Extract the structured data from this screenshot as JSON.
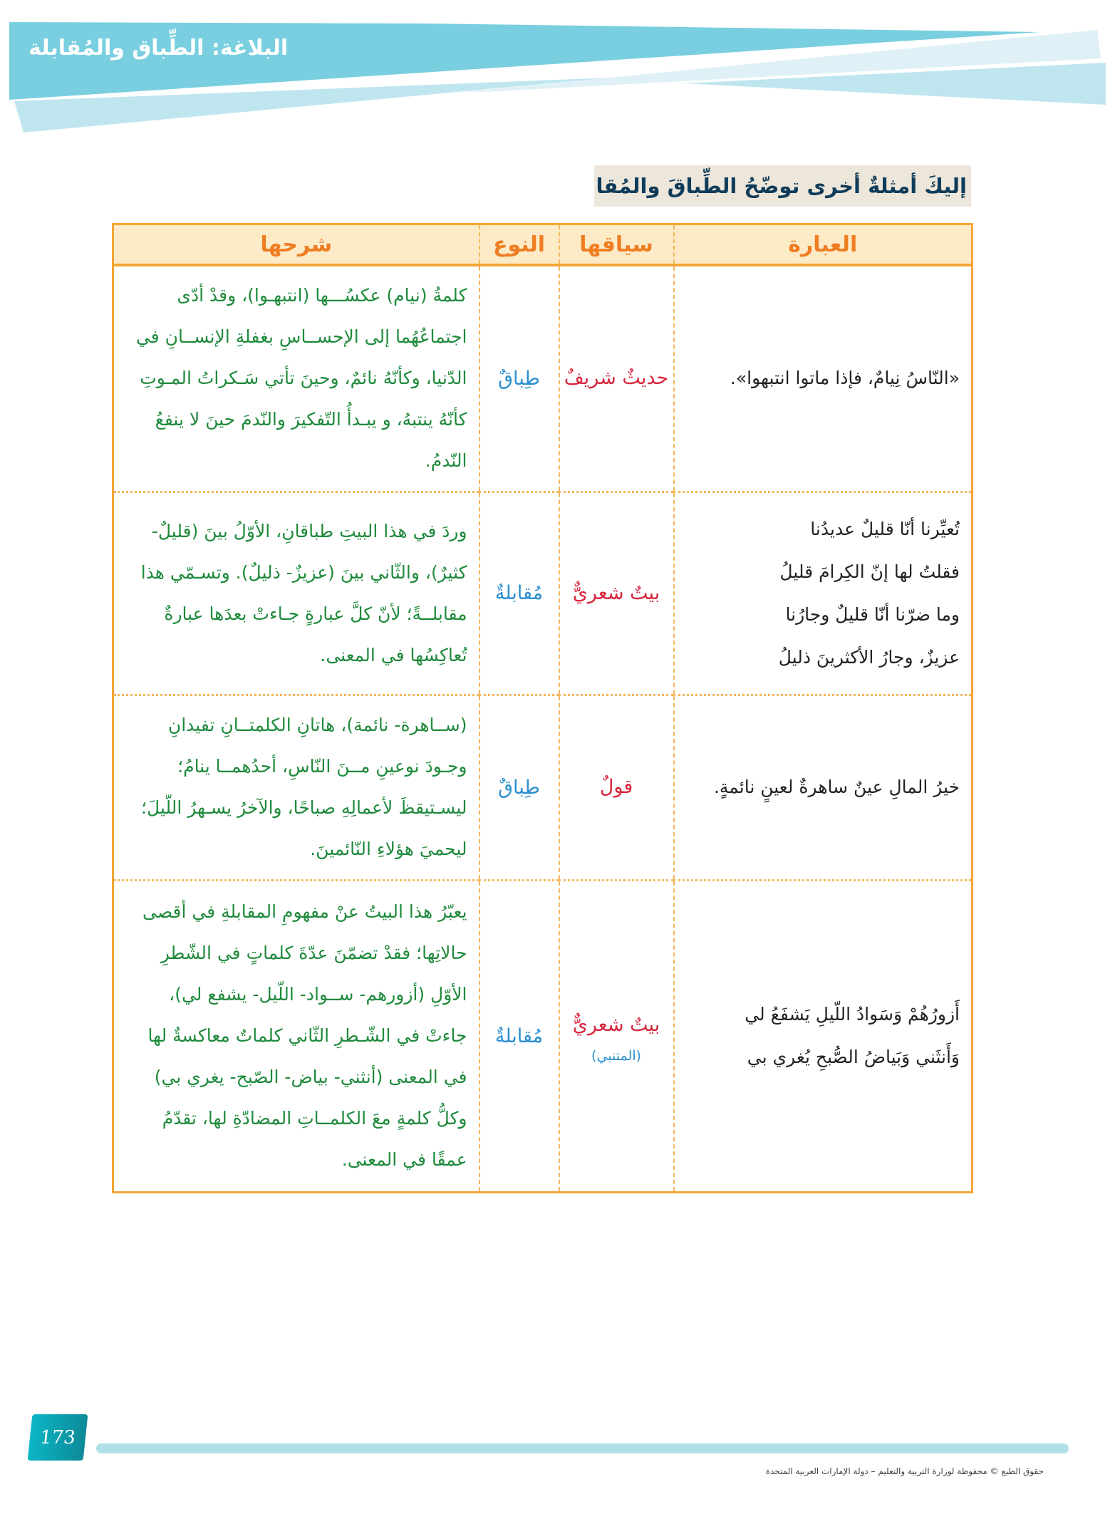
{
  "header": {
    "chapter_title": "البلاغة: الطِّباق والمُقابلة",
    "colors": {
      "band_dark": "#79cfe0",
      "band_light": "#bfe6ef"
    }
  },
  "section": {
    "heading": "إليكَ أمثلةٌ أخرى توضّحُ الطِّباقَ والمُقابلة."
  },
  "table": {
    "headers": [
      "العبارة",
      "سياقها",
      "النوع",
      "شرحها"
    ],
    "rows": [
      {
        "expression": "«النّاسُ نِيامٌ، فإذا ماتوا انتبهوا».",
        "context": "حديثٌ شريفٌ",
        "poet": "",
        "type": "طِباقٌ",
        "explanation": "كلمةُ (نيام) عكسُـــها (انتبهـوا)، وقدْ أدّى اجتماعُهُما إلى الإحســاسِ بغفلةِ الإنســانِ في الدّنيا، وكأنّهُ نائمٌ، وحينَ تأتي سَـكراتُ المـوتِ كأنّهُ ينتبهُ، و يبـدأُ التّفكيرَ والنّدمَ حينَ لا ينفعُ النّدمُ."
      },
      {
        "expression": "تُعيِّرنا أنّا قليلٌ عديدُنا\nفقلتُ لها إنّ الكِرامَ قليلُ\nوما ضرّنا أنّا قليلٌ وجارُنا\nعزيزٌ، وجارُ الأكثرينَ ذليلُ",
        "context": "بيتٌ شعريٌّ",
        "poet": "",
        "type": "مُقابلةٌ",
        "explanation": "وردَ في هذا البيتِ طباقانِ، الأوّلُ بينَ (قليلٌ- كثيرٌ)، والثّاني بينَ (عزيزٌ- ذليلٌ). وتسـمّي هذا مقابلــةً؛ لأنّ كلَّ عبارةٍ جـاءتْ بعدَها عبارةٌ تُعاكِسُها في المعنى."
      },
      {
        "expression": "خيرُ المالِ عينٌ ساهرةٌ لعينٍ نائمةٍ.",
        "context": "قولٌ",
        "poet": "",
        "type": "طِباقٌ",
        "explanation": "(ســاهرة- نائمة)، هاتانِ الكلمتــانِ تفيدانِ وجـودَ نوعينِ مــنَ النّاسِ، أحدُهمــا ينامُ؛ ليسـتيقظَ لأعمالِهِ صباحًا، والآخرُ يسـهرُ اللّيلَ؛ ليحميَ هؤلاءِ النّائمينَ."
      },
      {
        "expression": "أَزورُهُمْ وَسَوادُ اللّيلِ يَشفَعُ لي\nوَأَنثَني وَبَياضُ الصُّبحِ يُغري بي",
        "context": "بيتٌ شعريٌّ",
        "poet": "(المتنبي)",
        "type": "مُقابلةٌ",
        "explanation": "يعبّرُ هذا البيتُ عنْ مفهومِ المقابلةِ في أقصى حالاتِها؛ فقدْ تضمّنَ عدّةَ كلماتٍ في الشّطرِ الأوّلِ (أزورهم- ســواد- اللّيل- يشفع لي)، جاءتْ في الشّـطرِ الثّاني كلماتٌ معاكسةٌ لها في المعنى (أنثني- بياض- الصّبح- يغري بي) وكلُّ كلمةٍ معَ الكلمــاتِ المضادّةِ لها، تقدّمُ عمقًا في المعنى."
      }
    ]
  },
  "footer": {
    "page_number": "173",
    "copyright": "حقوق الطبع © محفوظة لوزارة التربية والتعليم – دولة الإمارات العربية المتحدة"
  }
}
